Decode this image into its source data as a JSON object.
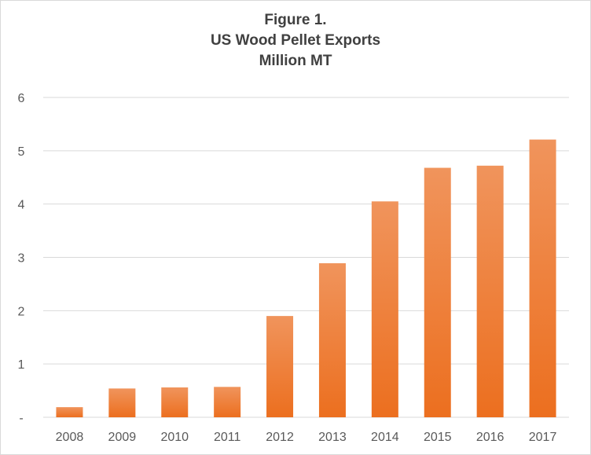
{
  "chart_data": {
    "type": "bar",
    "title_lines": [
      "Figure 1.",
      "US Wood Pellet Exports",
      "Million MT"
    ],
    "categories": [
      "2008",
      "2009",
      "2010",
      "2011",
      "2012",
      "2013",
      "2014",
      "2015",
      "2016",
      "2017"
    ],
    "values": [
      0.19,
      0.54,
      0.56,
      0.57,
      1.9,
      2.89,
      4.05,
      4.68,
      4.72,
      5.21
    ],
    "ylim": [
      0,
      6
    ],
    "y_ticks": [
      0,
      1,
      2,
      3,
      4,
      5,
      6
    ],
    "y_tick_labels": [
      "-",
      "1",
      "2",
      "3",
      "4",
      "5",
      "6"
    ],
    "xlabel": "",
    "ylabel": "",
    "grid": true,
    "legend": "none",
    "colors": {
      "bar_top": "#f0945c",
      "bar_bottom": "#ec6f1f",
      "grid": "#d9d9d9",
      "text": "#595959",
      "title": "#404040"
    }
  }
}
